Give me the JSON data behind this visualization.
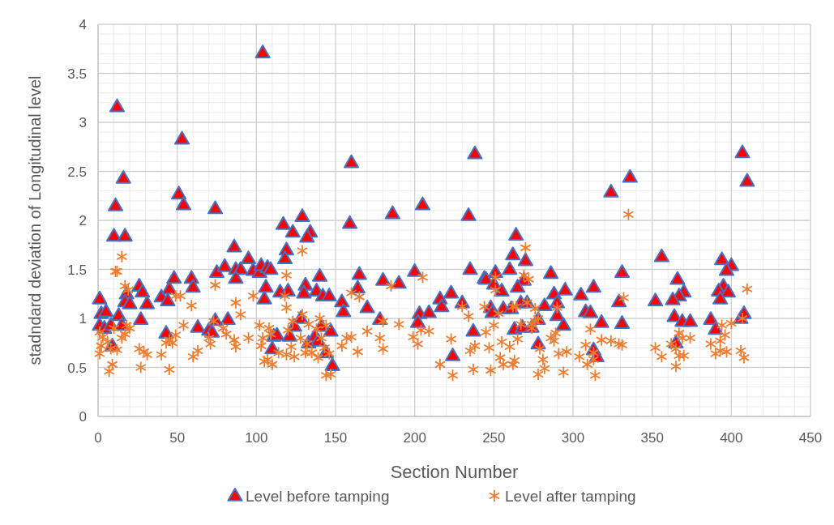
{
  "chart_data": {
    "type": "scatter",
    "xlabel": "Section Number",
    "ylabel": "stadndard deviation of Longitudinal level",
    "xlim": [
      0,
      450
    ],
    "xticks": [
      0,
      50,
      100,
      150,
      200,
      250,
      300,
      350,
      400,
      450
    ],
    "ylim": [
      0,
      4
    ],
    "yticks": [
      0,
      0.5,
      1,
      1.5,
      2,
      2.5,
      3,
      3.5,
      4
    ],
    "grid": true,
    "legend": "bottom",
    "series": [
      {
        "name": "Level before tamping",
        "color": "#ff0000",
        "marker": "triangle",
        "x": [
          1,
          2,
          5,
          1,
          4,
          8,
          9,
          13,
          15,
          12,
          11,
          16,
          10,
          17,
          18,
          17,
          20,
          26,
          28,
          31,
          27,
          40,
          44,
          45,
          48,
          43,
          53,
          51,
          54,
          59,
          60,
          74,
          63,
          70,
          72,
          74,
          75,
          80,
          82,
          86,
          87,
          90,
          87,
          95,
          98,
          102,
          103,
          104,
          107,
          109,
          106,
          105,
          111,
          110,
          117,
          129,
          123,
          134,
          132,
          119,
          118,
          115,
          120,
          131,
          130,
          138,
          140,
          142,
          146,
          128,
          124,
          113,
          121,
          133,
          137,
          139,
          141,
          147,
          148,
          144,
          160,
          159,
          165,
          164,
          154,
          155,
          170,
          178,
          180,
          190,
          186,
          200,
          205,
          203,
          209,
          202,
          216,
          217,
          223,
          224,
          230,
          238,
          234,
          235,
          237,
          244,
          245,
          251,
          250,
          255,
          248,
          249,
          264,
          262,
          270,
          260,
          269,
          265,
          256,
          261,
          267,
          271,
          263,
          268,
          274,
          278,
          282,
          278,
          286,
          288,
          290,
          290,
          294,
          295,
          305,
          313,
          308,
          311,
          318,
          313,
          315,
          324,
          336,
          331,
          329,
          331,
          356,
          352,
          366,
          370,
          367,
          363,
          364,
          369,
          374,
          365,
          394,
          400,
          397,
          395,
          392,
          398,
          393,
          387,
          390,
          407,
          410,
          406,
          408
        ],
        "values": [
          1.2,
          1.05,
          1.07,
          0.93,
          0.9,
          0.93,
          0.72,
          1.03,
          0.93,
          3.16,
          2.15,
          2.43,
          1.84,
          1.84,
          1.25,
          1.17,
          1.15,
          1.33,
          1.27,
          1.15,
          0.99,
          1.22,
          1.18,
          1.3,
          1.41,
          0.85,
          2.83,
          2.27,
          2.16,
          1.41,
          1.32,
          2.12,
          0.91,
          0.88,
          0.86,
          0.98,
          1.47,
          1.53,
          0.99,
          1.73,
          1.5,
          1.5,
          1.41,
          1.61,
          1.49,
          1.47,
          1.54,
          3.71,
          1.52,
          1.5,
          1.32,
          1.2,
          0.82,
          0.69,
          1.96,
          2.04,
          1.88,
          1.88,
          1.83,
          1.7,
          1.61,
          1.27,
          1.28,
          1.34,
          1.26,
          1.28,
          1.43,
          1.23,
          1.23,
          1.0,
          0.92,
          0.83,
          0.82,
          0.75,
          0.82,
          0.77,
          0.92,
          0.87,
          0.52,
          0.65,
          2.59,
          1.97,
          1.45,
          1.31,
          1.17,
          1.07,
          1.11,
          0.99,
          1.39,
          1.36,
          2.07,
          1.48,
          2.16,
          1.05,
          1.06,
          0.96,
          1.2,
          1.12,
          1.26,
          0.62,
          1.16,
          2.68,
          2.05,
          1.5,
          0.87,
          1.41,
          1.4,
          1.47,
          1.35,
          1.28,
          1.11,
          1.06,
          1.85,
          1.65,
          1.59,
          1.5,
          1.39,
          1.32,
          1.1,
          1.1,
          1.16,
          1.16,
          0.89,
          0.91,
          0.91,
          0.99,
          1.13,
          0.74,
          1.46,
          1.25,
          1.16,
          1.03,
          0.93,
          1.29,
          1.24,
          1.32,
          1.07,
          1.06,
          0.96,
          0.68,
          0.61,
          2.29,
          2.44,
          1.47,
          1.17,
          0.95,
          1.63,
          1.18,
          1.4,
          1.27,
          1.23,
          1.19,
          1.02,
          0.97,
          0.97,
          0.75,
          1.6,
          1.54,
          1.49,
          1.33,
          1.28,
          1.27,
          1.2,
          0.99,
          0.89,
          2.69,
          2.4,
          1.0,
          1.05
        ]
      },
      {
        "name": "Level after tamping",
        "color": "#ed7d31",
        "marker": "cross",
        "x": [
          1,
          10,
          18,
          20,
          15,
          17,
          3,
          6,
          2,
          1,
          8,
          12,
          7,
          9,
          15,
          11,
          12,
          17,
          19,
          26,
          29,
          31,
          27,
          40,
          43,
          45,
          47,
          49,
          45,
          49,
          52,
          54,
          59,
          60,
          63,
          74,
          70,
          71,
          73,
          79,
          81,
          86,
          87,
          87,
          90,
          95,
          98,
          102,
          104,
          103,
          105,
          107,
          110,
          108,
          109,
          129,
          119,
          118,
          119,
          123,
          120,
          129,
          133,
          140,
          144,
          128,
          132,
          138,
          141,
          135,
          131,
          139,
          146,
          143,
          114,
          122,
          124,
          119,
          144,
          147,
          160,
          165,
          157,
          160,
          154,
          164,
          170,
          178,
          180,
          180,
          185,
          190,
          205,
          199,
          202,
          204,
          209,
          216,
          223,
          224,
          230,
          234,
          237,
          248,
          238,
          235,
          247,
          250,
          244,
          245,
          251,
          251,
          253,
          255,
          254,
          256,
          260,
          262,
          263,
          262,
          264,
          270,
          269,
          272,
          265,
          267,
          271,
          274,
          276,
          274,
          276,
          278,
          279,
          281,
          278,
          282,
          286,
          289,
          290,
          288,
          291,
          296,
          294,
          304,
          308,
          311,
          309,
          313,
          314,
          313,
          318,
          324,
          329,
          331,
          332,
          335,
          352,
          356,
          362,
          365,
          367,
          369,
          374,
          367,
          370,
          365,
          387,
          390,
          393,
          396,
          400,
          394,
          397,
          393,
          407,
          406,
          408,
          410
        ],
        "values": [
          0.86,
          0.9,
          0.93,
          0.9,
          0.8,
          0.84,
          0.81,
          0.76,
          0.72,
          0.64,
          0.69,
          0.68,
          0.46,
          0.53,
          1.63,
          1.48,
          1.48,
          1.33,
          1.29,
          0.69,
          0.66,
          0.63,
          0.5,
          0.63,
          0.75,
          0.78,
          0.75,
          0.83,
          0.48,
          1.23,
          1.23,
          0.93,
          1.13,
          0.61,
          0.67,
          1.34,
          0.8,
          0.74,
          0.97,
          0.9,
          0.84,
          0.78,
          0.71,
          1.16,
          1.04,
          0.8,
          1.23,
          0.93,
          0.8,
          0.72,
          0.56,
          0.58,
          0.53,
          0.9,
          0.84,
          1.69,
          1.44,
          1.23,
          1.11,
          0.97,
          0.88,
          1.04,
          0.94,
          1.0,
          0.93,
          0.8,
          0.74,
          0.89,
          0.8,
          0.65,
          0.65,
          0.6,
          0.64,
          0.7,
          0.65,
          0.71,
          0.61,
          0.63,
          0.42,
          0.43,
          1.26,
          1.22,
          0.8,
          0.81,
          0.72,
          0.66,
          0.87,
          0.8,
          0.69,
          0.97,
          1.33,
          0.94,
          1.42,
          0.81,
          0.74,
          0.88,
          0.87,
          0.53,
          0.79,
          0.42,
          1.12,
          1.02,
          0.48,
          0.47,
          0.72,
          0.67,
          0.7,
          0.93,
          1.12,
          0.86,
          1.42,
          1.29,
          1.05,
          0.76,
          0.6,
          0.53,
          0.71,
          0.53,
          0.57,
          1.12,
          1.12,
          1.72,
          1.44,
          1.4,
          0.79,
          0.94,
          1.16,
          0.94,
          0.97,
          0.9,
          1.1,
          1.0,
          0.69,
          0.58,
          0.43,
          0.49,
          0.8,
          0.85,
          1.11,
          0.77,
          0.64,
          0.66,
          0.45,
          0.61,
          0.73,
          0.89,
          0.53,
          0.58,
          0.42,
          0.65,
          0.78,
          0.77,
          0.74,
          0.73,
          1.21,
          2.06,
          0.7,
          0.61,
          0.74,
          0.69,
          0.85,
          0.8,
          0.8,
          0.62,
          0.62,
          0.51,
          0.74,
          0.64,
          0.77,
          0.83,
          0.95,
          0.93,
          0.66,
          0.67,
          1.0,
          0.67,
          0.6,
          1.3
        ]
      }
    ]
  }
}
